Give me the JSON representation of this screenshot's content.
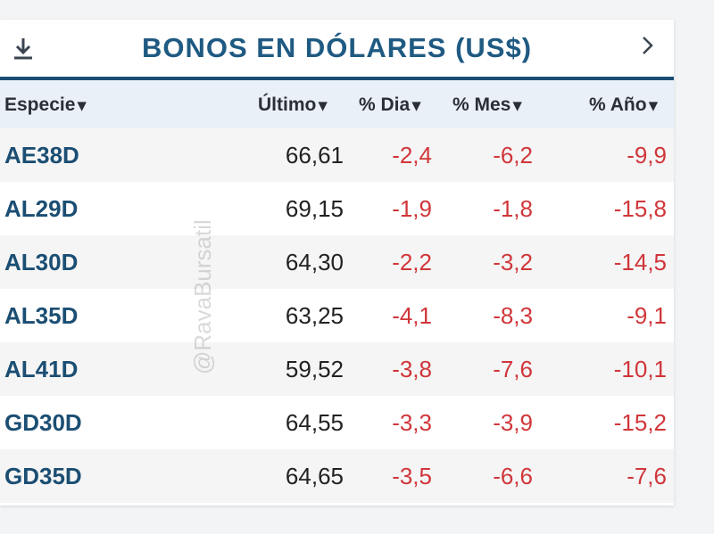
{
  "header": {
    "title": "BONOS EN DÓLARES (US$)"
  },
  "columns": {
    "especie": "Especie",
    "ultimo": "Último",
    "dia": "% Dia",
    "mes": "% Mes",
    "ano": "% Año",
    "sort_glyph": "▾"
  },
  "rows": [
    {
      "especie": "AE38D",
      "ultimo": "66,61",
      "dia": "-2,4",
      "mes": "-6,2",
      "ano": "-9,9"
    },
    {
      "especie": "AL29D",
      "ultimo": "69,15",
      "dia": "-1,9",
      "mes": "-1,8",
      "ano": "-15,8"
    },
    {
      "especie": "AL30D",
      "ultimo": "64,30",
      "dia": "-2,2",
      "mes": "-3,2",
      "ano": "-14,5"
    },
    {
      "especie": "AL35D",
      "ultimo": "63,25",
      "dia": "-4,1",
      "mes": "-8,3",
      "ano": "-9,1"
    },
    {
      "especie": "AL41D",
      "ultimo": "59,52",
      "dia": "-3,8",
      "mes": "-7,6",
      "ano": "-10,1"
    },
    {
      "especie": "GD30D",
      "ultimo": "64,55",
      "dia": "-3,3",
      "mes": "-3,9",
      "ano": "-15,2"
    },
    {
      "especie": "GD35D",
      "ultimo": "64,65",
      "dia": "-3,5",
      "mes": "-6,6",
      "ano": "-7,6"
    }
  ],
  "watermark": "@RavaBursatil",
  "icons": {
    "download": "download-icon",
    "next": "chevron-right-icon"
  },
  "colors": {
    "accent": "#1f5a82",
    "negative": "#d0363a",
    "header_bg": "#e9f0f7"
  }
}
